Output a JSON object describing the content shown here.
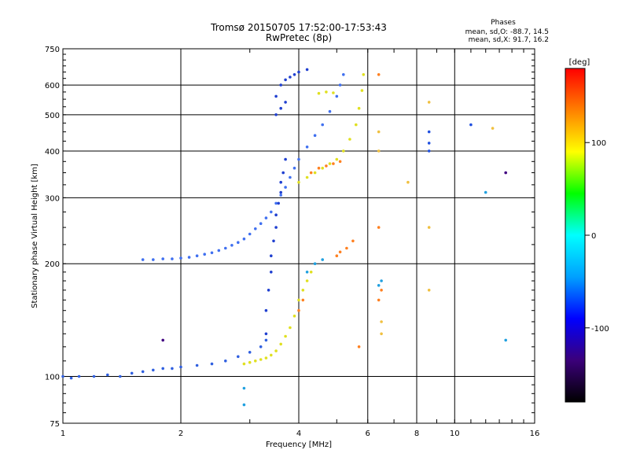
{
  "header": {
    "title_line1": "Tromsø 20150705 17:52:00-17:53:43",
    "title_line2": "RwPretec (8p)",
    "stats_title": "Phases",
    "stats_line1": "mean, sd,O: -88.7, 14.5",
    "stats_line2": "mean, sd,X:  91.7, 16.2"
  },
  "chart_data": {
    "type": "scatter",
    "xlabel": "Frequency [MHz]",
    "ylabel": "Stationary phase Virtual Height [km]",
    "xscale": "log",
    "yscale": "log",
    "xlim": [
      1,
      16
    ],
    "ylim": [
      75,
      750
    ],
    "xticks": [
      1,
      2,
      4,
      6,
      8,
      10,
      16
    ],
    "yticks": [
      75,
      100,
      200,
      300,
      400,
      500,
      600,
      750
    ],
    "xtick_labels": [
      "1",
      "2",
      "4",
      "6",
      "8",
      "10",
      "16"
    ],
    "ytick_labels": [
      "75",
      "100",
      "200",
      "300",
      "400",
      "500",
      "600",
      "750"
    ],
    "grid": true,
    "colorbar": {
      "label": "[deg]",
      "range": [
        -180,
        180
      ],
      "ticks": [
        -100,
        0,
        100
      ],
      "tick_labels": [
        "-100",
        "0",
        "100"
      ],
      "colors": [
        "#000000",
        "#3b007a",
        "#0000ff",
        "#00a0ff",
        "#00ffff",
        "#00ff00",
        "#ffff00",
        "#ff8000",
        "#ff0000"
      ]
    },
    "series": [
      {
        "color": "#3060e0",
        "points": [
          [
            1.0,
            100
          ],
          [
            1.05,
            99
          ],
          [
            1.1,
            100
          ],
          [
            1.2,
            100
          ],
          [
            1.3,
            101
          ],
          [
            1.4,
            100
          ],
          [
            1.5,
            102
          ],
          [
            1.6,
            103
          ],
          [
            1.7,
            104
          ],
          [
            1.8,
            105
          ],
          [
            1.9,
            105
          ],
          [
            2.0,
            106
          ],
          [
            2.2,
            107
          ],
          [
            2.4,
            108
          ],
          [
            2.6,
            110
          ],
          [
            2.8,
            113
          ],
          [
            3.0,
            116
          ],
          [
            3.2,
            120
          ],
          [
            3.3,
            125
          ]
        ]
      },
      {
        "color": "#4070f0",
        "points": [
          [
            1.6,
            205
          ],
          [
            1.7,
            205
          ],
          [
            1.8,
            206
          ],
          [
            1.9,
            206
          ],
          [
            2.0,
            207
          ],
          [
            2.1,
            208
          ],
          [
            2.2,
            210
          ],
          [
            2.3,
            212
          ],
          [
            2.4,
            214
          ],
          [
            2.5,
            217
          ],
          [
            2.6,
            220
          ],
          [
            2.7,
            224
          ],
          [
            2.8,
            228
          ],
          [
            2.9,
            233
          ],
          [
            3.0,
            240
          ],
          [
            3.1,
            248
          ],
          [
            3.2,
            256
          ],
          [
            3.3,
            265
          ],
          [
            3.4,
            275
          ],
          [
            3.5,
            290
          ],
          [
            3.6,
            305
          ],
          [
            3.7,
            320
          ],
          [
            3.8,
            340
          ],
          [
            3.9,
            360
          ],
          [
            4.0,
            380
          ],
          [
            4.2,
            410
          ],
          [
            4.4,
            440
          ],
          [
            4.6,
            470
          ],
          [
            4.8,
            510
          ],
          [
            5.0,
            560
          ],
          [
            5.1,
            600
          ],
          [
            5.2,
            640
          ]
        ]
      },
      {
        "color": "#2040d0",
        "points": [
          [
            3.3,
            130
          ],
          [
            3.3,
            150
          ],
          [
            3.35,
            170
          ],
          [
            3.4,
            190
          ],
          [
            3.4,
            210
          ],
          [
            3.45,
            230
          ],
          [
            3.5,
            250
          ],
          [
            3.5,
            270
          ],
          [
            3.55,
            290
          ],
          [
            3.6,
            310
          ],
          [
            3.6,
            330
          ],
          [
            3.65,
            350
          ],
          [
            3.7,
            380
          ],
          [
            3.5,
            500
          ],
          [
            3.6,
            520
          ],
          [
            3.7,
            540
          ],
          [
            3.5,
            560
          ],
          [
            3.6,
            600
          ],
          [
            3.7,
            620
          ],
          [
            3.8,
            630
          ],
          [
            3.9,
            640
          ],
          [
            4.0,
            650
          ],
          [
            4.2,
            660
          ]
        ]
      },
      {
        "color": "#e0e020",
        "points": [
          [
            2.9,
            108
          ],
          [
            3.0,
            109
          ],
          [
            3.1,
            110
          ],
          [
            3.2,
            111
          ],
          [
            3.3,
            112
          ],
          [
            3.4,
            114
          ],
          [
            3.5,
            117
          ],
          [
            3.6,
            122
          ],
          [
            3.7,
            128
          ],
          [
            3.8,
            135
          ],
          [
            3.9,
            145
          ],
          [
            4.0,
            160
          ],
          [
            4.1,
            170
          ],
          [
            4.2,
            180
          ],
          [
            4.3,
            190
          ],
          [
            4.0,
            330
          ],
          [
            4.2,
            340
          ],
          [
            4.4,
            350
          ],
          [
            4.6,
            360
          ],
          [
            4.8,
            370
          ],
          [
            5.0,
            380
          ],
          [
            5.2,
            400
          ],
          [
            5.4,
            430
          ],
          [
            5.6,
            470
          ],
          [
            5.7,
            520
          ],
          [
            5.8,
            580
          ],
          [
            5.85,
            640
          ],
          [
            4.5,
            570
          ],
          [
            4.7,
            575
          ],
          [
            4.9,
            572
          ]
        ]
      },
      {
        "color": "#ff8020",
        "points": [
          [
            4.0,
            150
          ],
          [
            4.1,
            160
          ],
          [
            4.3,
            350
          ],
          [
            4.5,
            360
          ],
          [
            4.7,
            365
          ],
          [
            4.9,
            370
          ],
          [
            5.1,
            375
          ],
          [
            5.0,
            210
          ],
          [
            5.1,
            215
          ],
          [
            5.3,
            220
          ],
          [
            5.5,
            230
          ],
          [
            5.7,
            120
          ],
          [
            6.4,
            640
          ],
          [
            6.4,
            250
          ],
          [
            6.5,
            170
          ],
          [
            6.4,
            160
          ]
        ]
      },
      {
        "color": "#f0c040",
        "points": [
          [
            6.4,
            450
          ],
          [
            6.4,
            400
          ],
          [
            6.5,
            140
          ],
          [
            6.5,
            130
          ],
          [
            7.6,
            330
          ],
          [
            8.6,
            540
          ],
          [
            8.6,
            250
          ],
          [
            8.6,
            170
          ],
          [
            12.5,
            460
          ]
        ]
      },
      {
        "color": "#2050e0",
        "points": [
          [
            8.6,
            450
          ],
          [
            8.6,
            420
          ],
          [
            8.6,
            400
          ],
          [
            11.0,
            470
          ]
        ]
      },
      {
        "color": "#20a0e0",
        "points": [
          [
            12.0,
            310
          ],
          [
            13.5,
            125
          ],
          [
            6.5,
            180
          ],
          [
            6.4,
            175
          ],
          [
            4.2,
            190
          ],
          [
            4.4,
            200
          ],
          [
            4.6,
            205
          ],
          [
            2.9,
            93
          ],
          [
            2.9,
            84
          ]
        ]
      },
      {
        "color": "#400080",
        "points": [
          [
            13.5,
            350
          ],
          [
            1.8,
            125
          ]
        ]
      }
    ]
  }
}
